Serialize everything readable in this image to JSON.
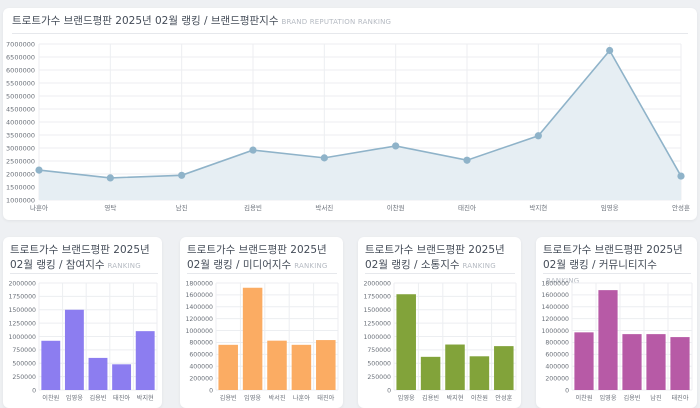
{
  "main_card": {
    "title": "트로트가수 브랜드평판 2025년 02월 랭킹 / 브랜드평판지수",
    "subtitle": "BRAND REPUTATION RANKING"
  },
  "small_cards": [
    {
      "title": "트로트가수 브랜드평판 2025년 02월 랭킹 / 참여지수",
      "subtitle": "RANKING"
    },
    {
      "title": "트로트가수 브랜드평판 2025년 02월 랭킹 / 미디어지수",
      "subtitle": "RANKING"
    },
    {
      "title": "트로트가수 브랜드평판 2025년 02월 랭킹 / 소통지수",
      "subtitle": "RANKING"
    },
    {
      "title": "트로트가수 브랜드평판 2025년 02월 랭킹 / 커뮤니티지수",
      "subtitle": "RANKING"
    }
  ],
  "chart_data": [
    {
      "type": "area",
      "categories": [
        "나훈아",
        "영탁",
        "남진",
        "김용빈",
        "박서진",
        "이찬원",
        "태진아",
        "박지현",
        "임영웅",
        "안성훈"
      ],
      "values": [
        2150000,
        1850000,
        1950000,
        2920000,
        2620000,
        3080000,
        2530000,
        3470000,
        6750000,
        1920000
      ],
      "ylim": [
        1000000,
        7000000
      ],
      "yticks": [
        "1000000",
        "1500000",
        "2000000",
        "2500000",
        "3000000",
        "3500000",
        "4000000",
        "4500000",
        "5000000",
        "5500000",
        "6000000",
        "6500000",
        "7000000"
      ],
      "color": "#8fb3c9",
      "fill": "#e6eef3",
      "grid": true
    },
    {
      "type": "bar",
      "categories": [
        "이찬원",
        "임영웅",
        "김용빈",
        "태진아",
        "박지현"
      ],
      "values": [
        920000,
        1500000,
        600000,
        480000,
        1100000
      ],
      "ylim": [
        0,
        2000000
      ],
      "yticks": [
        "0",
        "250000",
        "500000",
        "750000",
        "1000000",
        "1250000",
        "1500000",
        "1750000",
        "2000000"
      ],
      "color": "#8c7df0",
      "grid": true
    },
    {
      "type": "bar",
      "categories": [
        "김용빈",
        "임영웅",
        "박서진",
        "나훈아",
        "태진아"
      ],
      "values": [
        760000,
        1720000,
        830000,
        760000,
        840000
      ],
      "ylim": [
        0,
        1800000
      ],
      "yticks": [
        "0",
        "200000",
        "400000",
        "600000",
        "800000",
        "1000000",
        "1200000",
        "1400000",
        "1600000",
        "1800000"
      ],
      "color": "#fbac63",
      "grid": true
    },
    {
      "type": "bar",
      "categories": [
        "임영웅",
        "김용빈",
        "박지현",
        "이찬원",
        "안성훈"
      ],
      "values": [
        1790000,
        620000,
        850000,
        630000,
        820000
      ],
      "ylim": [
        0,
        2000000
      ],
      "yticks": [
        "0",
        "250000",
        "500000",
        "750000",
        "1000000",
        "1250000",
        "1500000",
        "1750000",
        "2000000"
      ],
      "color": "#82a33a",
      "grid": true
    },
    {
      "type": "bar",
      "categories": [
        "이찬원",
        "임영웅",
        "김용빈",
        "남진",
        "태진아"
      ],
      "values": [
        970000,
        1680000,
        940000,
        940000,
        890000
      ],
      "ylim": [
        0,
        1800000
      ],
      "yticks": [
        "0",
        "200000",
        "400000",
        "600000",
        "800000",
        "1000000",
        "1200000",
        "1400000",
        "1600000",
        "1800000"
      ],
      "color": "#b75aa6",
      "grid": true
    }
  ]
}
